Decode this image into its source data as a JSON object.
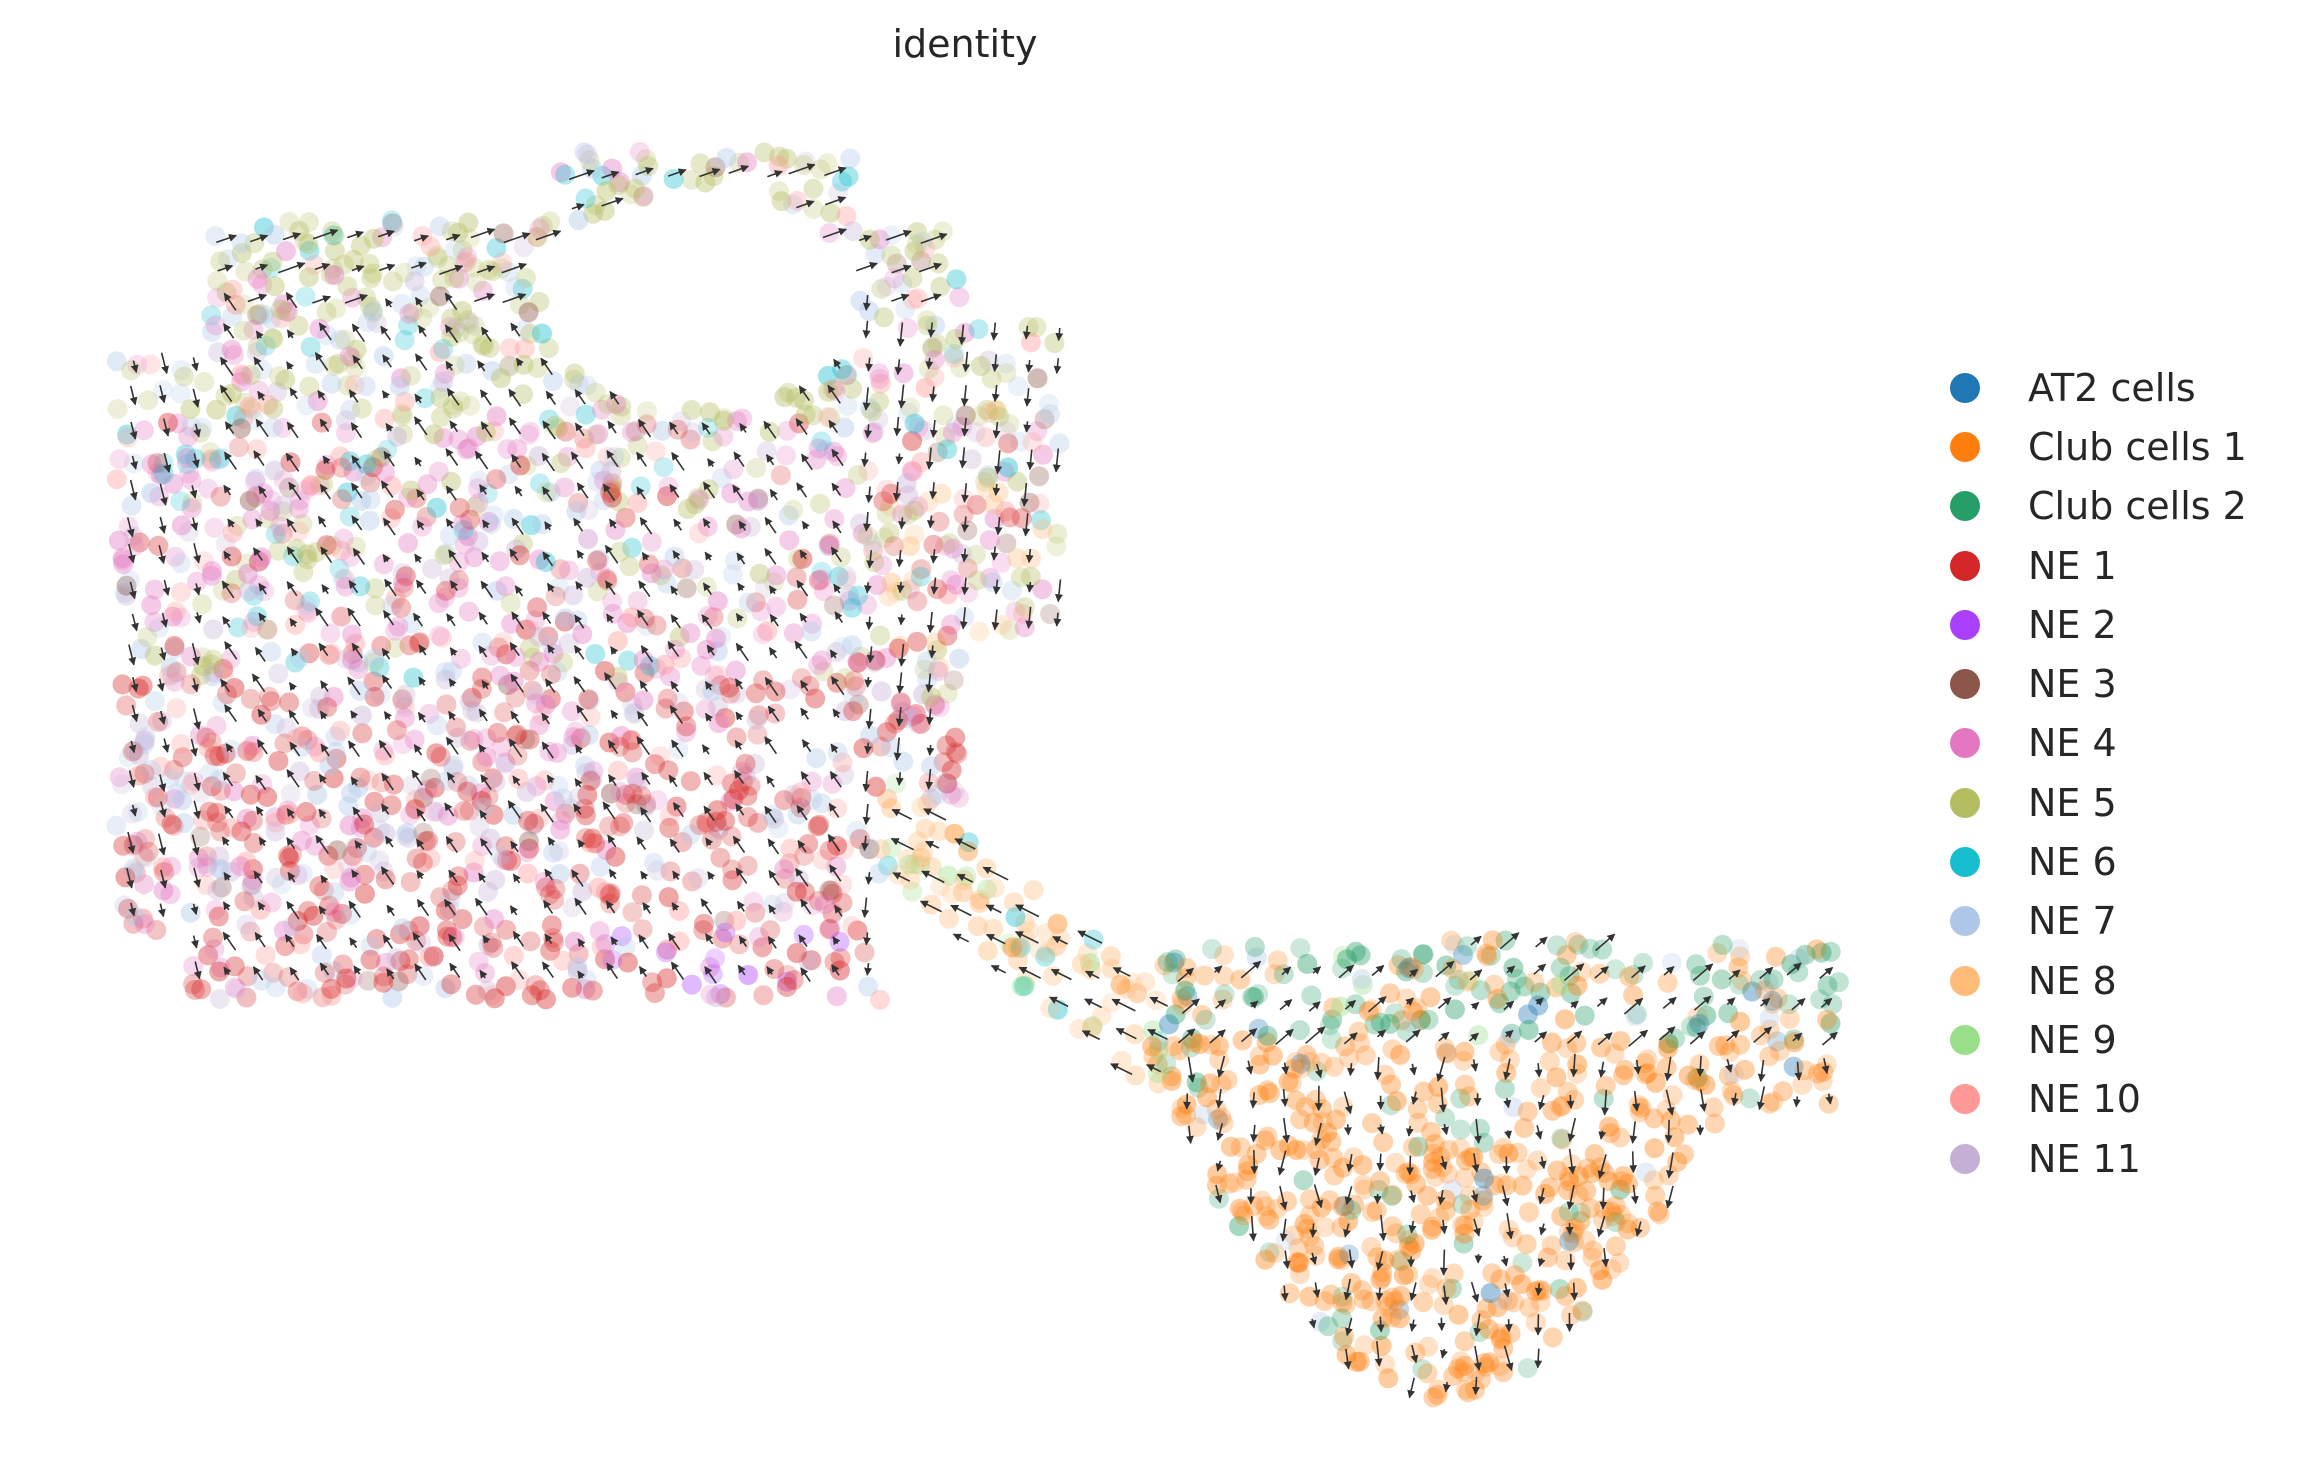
{
  "chart_data": {
    "type": "scatter",
    "title": "identity",
    "xlabel": "",
    "ylabel": "",
    "axes_visible": false,
    "grid": false,
    "legend_position": "right",
    "overlay": "velocity arrows (stream/grid embedding)",
    "series": [
      {
        "name": "AT2 cells",
        "color": "#1f77b4",
        "prominence": 0.02,
        "region": "right"
      },
      {
        "name": "Club cells 1",
        "color": "#ff7f0e",
        "prominence": 0.55,
        "region": "right"
      },
      {
        "name": "Club cells 2",
        "color": "#279e68",
        "prominence": 0.12,
        "region": "right-top"
      },
      {
        "name": "NE 1",
        "color": "#d62728",
        "prominence": 0.3,
        "region": "left-bottom"
      },
      {
        "name": "NE 2",
        "color": "#aa40fc",
        "prominence": 0.1,
        "region": "left-bottom-edge"
      },
      {
        "name": "NE 3",
        "color": "#8c564b",
        "prominence": 0.03,
        "region": "left-right-edge"
      },
      {
        "name": "NE 4",
        "color": "#e377c2",
        "prominence": 0.22,
        "region": "left-middle"
      },
      {
        "name": "NE 5",
        "color": "#b5bd61",
        "prominence": 0.18,
        "region": "left-top"
      },
      {
        "name": "NE 6",
        "color": "#17becf",
        "prominence": 0.05,
        "region": "left-top-right"
      },
      {
        "name": "NE 7",
        "color": "#aec7e8",
        "prominence": 0.1,
        "region": "left-outer"
      },
      {
        "name": "NE 8",
        "color": "#ffbb78",
        "prominence": 0.1,
        "region": "bridge"
      },
      {
        "name": "NE 9",
        "color": "#98df8a",
        "prominence": 0.02,
        "region": "bridge"
      },
      {
        "name": "NE 10",
        "color": "#ff9896",
        "prominence": 0.06,
        "region": "left"
      },
      {
        "name": "NE 11",
        "color": "#c5b0d5",
        "prominence": 0.04,
        "region": "left-middle"
      }
    ]
  }
}
